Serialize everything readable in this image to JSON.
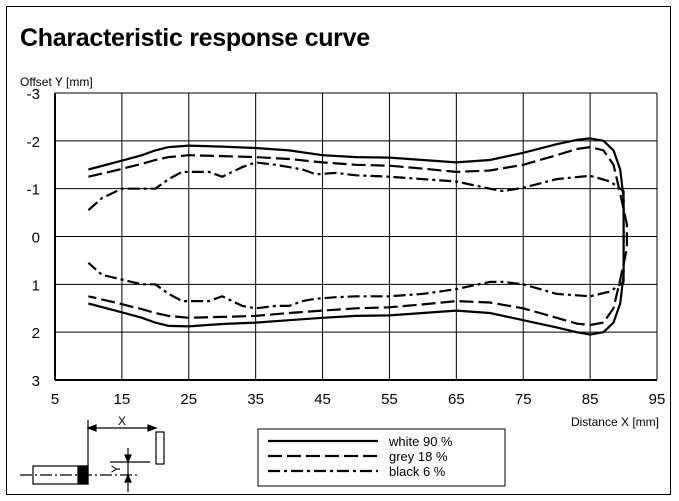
{
  "chart_data": {
    "type": "line",
    "title": "Characteristic response curve",
    "ylabel": "Offset Y [mm]",
    "xlabel": "Distance X [mm]",
    "xlim": [
      5,
      95
    ],
    "ylim": [
      -3,
      3
    ],
    "y_inverted": true,
    "grid": true,
    "x_ticks": [
      5,
      15,
      25,
      35,
      45,
      55,
      65,
      75,
      85,
      95
    ],
    "y_ticks": [
      {
        "value": -3,
        "label": "-3"
      },
      {
        "value": -2,
        "label": "-2"
      },
      {
        "value": -1,
        "label": "-1"
      },
      {
        "value": 0,
        "label": "0"
      },
      {
        "value": 1,
        "label": "1"
      },
      {
        "value": 2,
        "label": "2"
      },
      {
        "value": 3,
        "label": "3"
      }
    ],
    "legend_position": "bottom-center",
    "series": [
      {
        "name": "white 90 %",
        "dash": "solid",
        "x": [
          10,
          14,
          18,
          20,
          22,
          25,
          30,
          35,
          40,
          45,
          50,
          55,
          60,
          65,
          70,
          75,
          80,
          83,
          85,
          87,
          88.5,
          89.5,
          90,
          90,
          89.5,
          88.5,
          87,
          85,
          83,
          80,
          75,
          70,
          65,
          60,
          55,
          50,
          45,
          40,
          35,
          30,
          25,
          22,
          20,
          18,
          14,
          10
        ],
        "y": [
          -1.4,
          -1.55,
          -1.7,
          -1.8,
          -1.87,
          -1.9,
          -1.88,
          -1.85,
          -1.8,
          -1.7,
          -1.66,
          -1.65,
          -1.6,
          -1.55,
          -1.6,
          -1.75,
          -1.93,
          -2.02,
          -2.05,
          -2.0,
          -1.8,
          -1.4,
          -0.8,
          0.8,
          1.4,
          1.8,
          2.0,
          2.05,
          2.0,
          1.9,
          1.75,
          1.6,
          1.55,
          1.6,
          1.65,
          1.66,
          1.7,
          1.75,
          1.8,
          1.83,
          1.88,
          1.87,
          1.8,
          1.7,
          1.55,
          1.4
        ]
      },
      {
        "name": "grey 18 %",
        "dash": "dashed",
        "x": [
          10,
          14,
          18,
          20,
          22,
          25,
          30,
          35,
          40,
          45,
          50,
          55,
          60,
          65,
          70,
          75,
          80,
          83,
          85,
          87,
          88.5,
          89.5,
          90.5,
          90.5,
          89.5,
          88.5,
          87,
          85,
          83,
          80,
          75,
          70,
          65,
          60,
          55,
          50,
          45,
          40,
          35,
          30,
          25,
          22,
          20,
          18,
          14,
          10
        ],
        "y": [
          -1.25,
          -1.38,
          -1.52,
          -1.6,
          -1.66,
          -1.7,
          -1.68,
          -1.66,
          -1.62,
          -1.55,
          -1.5,
          -1.48,
          -1.42,
          -1.35,
          -1.38,
          -1.5,
          -1.7,
          -1.83,
          -1.87,
          -1.8,
          -1.5,
          -0.9,
          -0.25,
          0.25,
          0.9,
          1.5,
          1.8,
          1.85,
          1.82,
          1.7,
          1.5,
          1.38,
          1.35,
          1.42,
          1.48,
          1.5,
          1.55,
          1.6,
          1.66,
          1.68,
          1.7,
          1.66,
          1.6,
          1.52,
          1.38,
          1.25
        ]
      },
      {
        "name": "black 6 %",
        "dash": "dashdot",
        "x": [
          10,
          12,
          15,
          18,
          20,
          22,
          24,
          28,
          30,
          33,
          35,
          38,
          40,
          42,
          44,
          47,
          50,
          55,
          60,
          65,
          70,
          72,
          75,
          80,
          85,
          88,
          90,
          90,
          88,
          85,
          80,
          75,
          72,
          70,
          65,
          60,
          55,
          50,
          47,
          44,
          42,
          40,
          38,
          35,
          33,
          30,
          28,
          24,
          22,
          20,
          18,
          15,
          12,
          10
        ],
        "y": [
          -0.55,
          -0.8,
          -1.0,
          -1.0,
          -1.0,
          -1.2,
          -1.35,
          -1.35,
          -1.25,
          -1.45,
          -1.55,
          -1.5,
          -1.45,
          -1.4,
          -1.3,
          -1.33,
          -1.28,
          -1.25,
          -1.2,
          -1.15,
          -1.0,
          -0.95,
          -1.02,
          -1.2,
          -1.27,
          -1.15,
          -0.95,
          0.95,
          1.15,
          1.25,
          1.2,
          1.0,
          0.95,
          0.95,
          1.1,
          1.2,
          1.25,
          1.25,
          1.27,
          1.3,
          1.35,
          1.45,
          1.45,
          1.5,
          1.45,
          1.25,
          1.35,
          1.35,
          1.2,
          1.0,
          1.0,
          0.9,
          0.8,
          0.55
        ]
      }
    ]
  },
  "diagram": {
    "x_label": "X",
    "y_label": "Y"
  }
}
